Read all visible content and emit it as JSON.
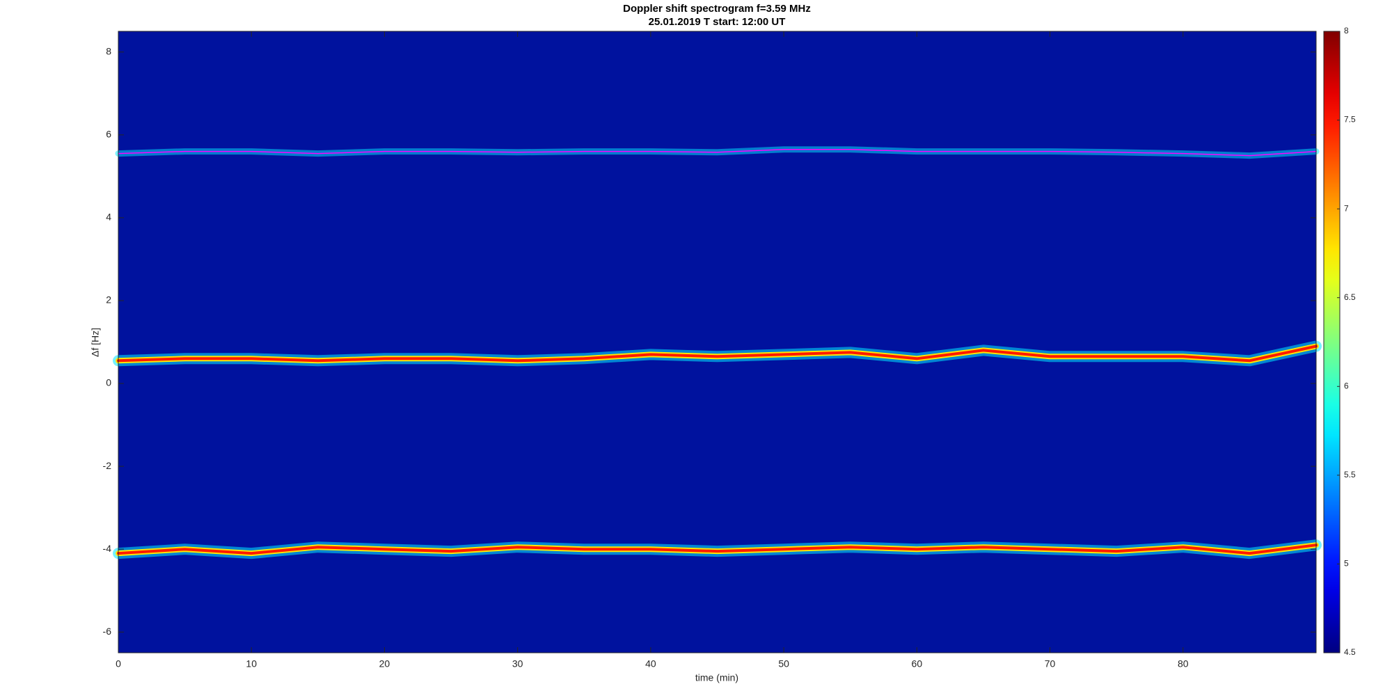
{
  "chart_data": {
    "type": "line",
    "title": "Doppler shift spectrogram f=3.59 MHz",
    "subtitle": "25.01.2019   T start: 12:00 UT",
    "x_label": "time (min)",
    "y_label": "Δf [Hz]",
    "x": [
      0,
      5,
      10,
      15,
      20,
      25,
      30,
      35,
      40,
      45,
      50,
      55,
      60,
      65,
      70,
      75,
      80,
      85,
      90
    ],
    "series": [
      {
        "color": "#ff00ff",
        "values": [
          5.55,
          5.6,
          5.6,
          5.55,
          5.6,
          5.6,
          5.58,
          5.6,
          5.6,
          5.58,
          5.65,
          5.65,
          5.6,
          5.6,
          5.6,
          5.58,
          5.55,
          5.5,
          5.6
        ]
      },
      {
        "color": "#ff1a00",
        "values": [
          0.55,
          0.6,
          0.6,
          0.55,
          0.6,
          0.6,
          0.55,
          0.6,
          0.7,
          0.65,
          0.7,
          0.75,
          0.6,
          0.8,
          0.65,
          0.65,
          0.65,
          0.55,
          0.9
        ]
      },
      {
        "color": "#ff1a00",
        "values": [
          -4.1,
          -4.0,
          -4.1,
          -3.95,
          -4.0,
          -4.05,
          -3.95,
          -4.0,
          -4.0,
          -4.05,
          -4.0,
          -3.95,
          -4.0,
          -3.95,
          -4.0,
          -4.05,
          -3.95,
          -4.1,
          -3.9
        ]
      }
    ],
    "xlim": [
      0,
      90
    ],
    "xticks": [
      0,
      10,
      20,
      30,
      40,
      50,
      60,
      70,
      80
    ],
    "ylim": [
      -6.5,
      8.5
    ],
    "yticks": [
      -6,
      -4,
      -2,
      0,
      2,
      4,
      6,
      8
    ],
    "colormap": "jet",
    "clim": [
      4.5,
      8
    ],
    "cticks": [
      4.5,
      5,
      5.5,
      6,
      6.5,
      7,
      7.5,
      8
    ],
    "background_color": "#00129e"
  }
}
